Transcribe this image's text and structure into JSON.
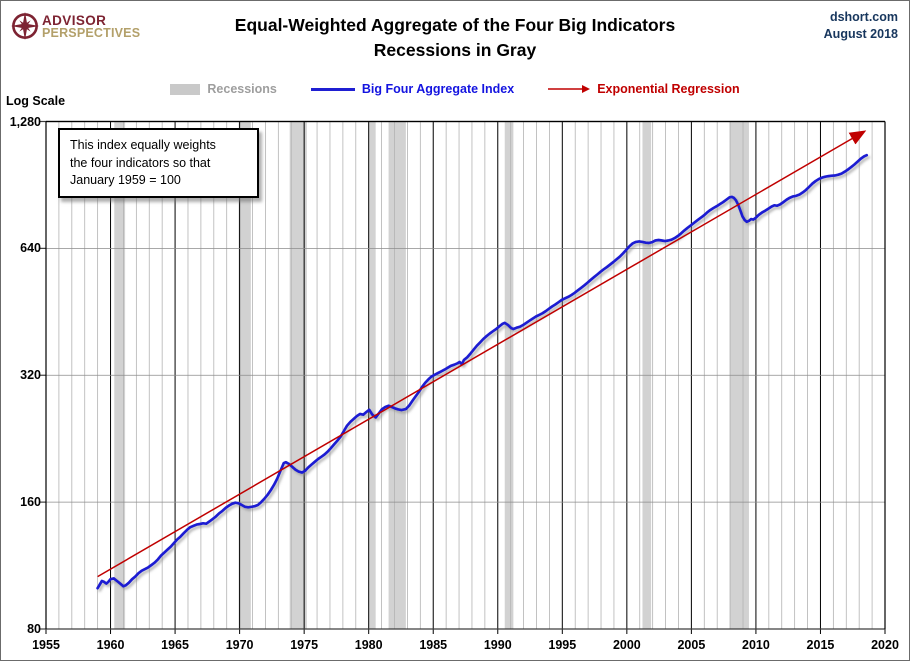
{
  "header": {
    "logo_line1": "ADVISOR",
    "logo_line2": "PERSPECTIVES",
    "title_line1": "Equal-Weighted Aggregate of the Four Big Indicators",
    "title_line2": "Recessions in Gray",
    "source": "dshort.com",
    "date": "August 2018"
  },
  "legend": {
    "recessions_label": "Recessions",
    "index_label": "Big Four Aggregate Index",
    "regression_label": "Exponential Regression"
  },
  "annotation": {
    "line1": "This index equally weights",
    "line2": "the four indicators  so that",
    "line3": "January 1959 = 100"
  },
  "axis": {
    "scale_label": "Log Scale"
  },
  "colors": {
    "index_line": "#1f1fd2",
    "regression_line": "#c00000",
    "recession_band": "#d2d2d2",
    "minor_gridline": "#b3b3b3",
    "major_gridline": "#000000",
    "horizontal_gridline": "#8c8c8c",
    "legend_recessions_text": "#9e9e9e",
    "index_text": "#1414e0",
    "source_text": "#17365d",
    "logo_maroon": "#7d2332",
    "logo_tan": "#b3a06a"
  },
  "chart_data": {
    "type": "line",
    "title": "Equal-Weighted Aggregate of the Four Big Indicators",
    "subtitle": "Recessions in Gray",
    "y_scale": "log",
    "ylim": [
      80,
      1280
    ],
    "xlim": [
      1955,
      2020
    ],
    "y_tick_labels": [
      "1,280",
      "640",
      "320",
      "160",
      "80"
    ],
    "y_tick_values": [
      1280,
      640,
      320,
      160,
      80
    ],
    "x_tick_values": [
      1955,
      1960,
      1965,
      1970,
      1975,
      1980,
      1985,
      1990,
      1995,
      2000,
      2005,
      2010,
      2015,
      2020
    ],
    "recessions": [
      [
        1960.29,
        1961.13
      ],
      [
        1969.92,
        1970.87
      ],
      [
        1973.88,
        1975.21
      ],
      [
        1980.04,
        1980.54
      ],
      [
        1981.54,
        1982.88
      ],
      [
        1990.54,
        1991.21
      ],
      [
        2001.21,
        2001.88
      ],
      [
        2007.96,
        2009.46
      ]
    ],
    "series": [
      {
        "name": "Big Four Aggregate Index",
        "color": "#1f1fd2",
        "points": [
          [
            1959.0,
            100
          ],
          [
            1959.17,
            102
          ],
          [
            1959.33,
            104
          ],
          [
            1959.5,
            103.5
          ],
          [
            1959.67,
            102.5
          ],
          [
            1959.83,
            103.5
          ],
          [
            1960.0,
            105
          ],
          [
            1960.25,
            105.5
          ],
          [
            1960.5,
            104
          ],
          [
            1960.75,
            102.5
          ],
          [
            1961.0,
            101
          ],
          [
            1961.17,
            101.5
          ],
          [
            1961.42,
            103
          ],
          [
            1961.67,
            105
          ],
          [
            1961.92,
            106.5
          ],
          [
            1962.17,
            108.5
          ],
          [
            1962.42,
            110
          ],
          [
            1962.67,
            111
          ],
          [
            1962.92,
            112
          ],
          [
            1963.17,
            113.5
          ],
          [
            1963.42,
            115
          ],
          [
            1963.67,
            117
          ],
          [
            1963.92,
            119.5
          ],
          [
            1964.17,
            121.5
          ],
          [
            1964.42,
            123.5
          ],
          [
            1964.67,
            125.5
          ],
          [
            1964.92,
            128
          ],
          [
            1965.17,
            130.5
          ],
          [
            1965.42,
            132.5
          ],
          [
            1965.67,
            135
          ],
          [
            1965.92,
            137.5
          ],
          [
            1966.17,
            139.5
          ],
          [
            1966.42,
            140.5
          ],
          [
            1966.67,
            141.5
          ],
          [
            1966.92,
            142
          ],
          [
            1967.17,
            142.5
          ],
          [
            1967.42,
            142.2
          ],
          [
            1967.67,
            144
          ],
          [
            1967.92,
            146
          ],
          [
            1968.17,
            148
          ],
          [
            1968.42,
            150.5
          ],
          [
            1968.67,
            152.5
          ],
          [
            1968.92,
            155
          ],
          [
            1969.17,
            157
          ],
          [
            1969.42,
            158.5
          ],
          [
            1969.67,
            159.5
          ],
          [
            1969.92,
            159
          ],
          [
            1970.17,
            157.5
          ],
          [
            1970.42,
            156
          ],
          [
            1970.67,
            155.5
          ],
          [
            1970.92,
            156
          ],
          [
            1971.17,
            156.5
          ],
          [
            1971.42,
            157.5
          ],
          [
            1971.67,
            160
          ],
          [
            1971.92,
            163
          ],
          [
            1972.17,
            166.5
          ],
          [
            1972.42,
            171
          ],
          [
            1972.67,
            176
          ],
          [
            1972.92,
            182
          ],
          [
            1973.17,
            190
          ],
          [
            1973.42,
            198
          ],
          [
            1973.58,
            199
          ],
          [
            1973.83,
            197
          ],
          [
            1974.08,
            194
          ],
          [
            1974.33,
            191
          ],
          [
            1974.58,
            189
          ],
          [
            1974.83,
            188
          ],
          [
            1975.08,
            190
          ],
          [
            1975.33,
            193.5
          ],
          [
            1975.58,
            196.5
          ],
          [
            1975.83,
            199.5
          ],
          [
            1976.08,
            202.5
          ],
          [
            1976.33,
            205
          ],
          [
            1976.58,
            207.5
          ],
          [
            1976.83,
            211
          ],
          [
            1977.08,
            215
          ],
          [
            1977.33,
            219.5
          ],
          [
            1977.58,
            224
          ],
          [
            1977.83,
            229
          ],
          [
            1978.08,
            236
          ],
          [
            1978.33,
            243
          ],
          [
            1978.58,
            248
          ],
          [
            1978.83,
            252
          ],
          [
            1979.08,
            256
          ],
          [
            1979.33,
            259
          ],
          [
            1979.58,
            258
          ],
          [
            1979.83,
            262
          ],
          [
            1980.04,
            265
          ],
          [
            1980.29,
            258
          ],
          [
            1980.54,
            254
          ],
          [
            1980.79,
            260
          ],
          [
            1981.04,
            266
          ],
          [
            1981.29,
            269
          ],
          [
            1981.54,
            271
          ],
          [
            1981.79,
            269
          ],
          [
            1982.04,
            267
          ],
          [
            1982.29,
            265.5
          ],
          [
            1982.54,
            264.5
          ],
          [
            1982.88,
            266
          ],
          [
            1983.13,
            271
          ],
          [
            1983.38,
            278
          ],
          [
            1983.63,
            285
          ],
          [
            1983.88,
            292
          ],
          [
            1984.13,
            300
          ],
          [
            1984.38,
            307
          ],
          [
            1984.63,
            313
          ],
          [
            1984.88,
            318
          ],
          [
            1985.13,
            321
          ],
          [
            1985.38,
            324
          ],
          [
            1985.63,
            327
          ],
          [
            1985.88,
            330
          ],
          [
            1986.13,
            333.5
          ],
          [
            1986.38,
            337
          ],
          [
            1986.63,
            339
          ],
          [
            1986.88,
            341.5
          ],
          [
            1987.04,
            344
          ],
          [
            1987.21,
            340
          ],
          [
            1987.38,
            348
          ],
          [
            1987.63,
            353
          ],
          [
            1987.88,
            360
          ],
          [
            1988.13,
            368
          ],
          [
            1988.38,
            376
          ],
          [
            1988.63,
            383
          ],
          [
            1988.88,
            390
          ],
          [
            1989.13,
            396
          ],
          [
            1989.38,
            402
          ],
          [
            1989.63,
            407
          ],
          [
            1989.88,
            412
          ],
          [
            1990.13,
            418
          ],
          [
            1990.38,
            424
          ],
          [
            1990.54,
            426
          ],
          [
            1990.79,
            421
          ],
          [
            1991.04,
            414
          ],
          [
            1991.21,
            412
          ],
          [
            1991.46,
            415
          ],
          [
            1991.71,
            417
          ],
          [
            1991.96,
            421
          ],
          [
            1992.21,
            426
          ],
          [
            1992.46,
            431
          ],
          [
            1992.71,
            436
          ],
          [
            1992.96,
            441
          ],
          [
            1993.21,
            445
          ],
          [
            1993.46,
            449
          ],
          [
            1993.71,
            454
          ],
          [
            1993.96,
            460
          ],
          [
            1994.21,
            466
          ],
          [
            1994.46,
            471
          ],
          [
            1994.71,
            477
          ],
          [
            1994.96,
            483
          ],
          [
            1995.21,
            487
          ],
          [
            1995.46,
            491
          ],
          [
            1995.71,
            496
          ],
          [
            1995.96,
            502
          ],
          [
            1996.21,
            509
          ],
          [
            1996.46,
            516
          ],
          [
            1996.71,
            523
          ],
          [
            1996.96,
            531
          ],
          [
            1997.21,
            539
          ],
          [
            1997.46,
            547
          ],
          [
            1997.71,
            555
          ],
          [
            1997.96,
            563
          ],
          [
            1998.21,
            571
          ],
          [
            1998.46,
            578
          ],
          [
            1998.71,
            586
          ],
          [
            1998.96,
            594
          ],
          [
            1999.21,
            603
          ],
          [
            1999.46,
            612
          ],
          [
            1999.71,
            623
          ],
          [
            1999.96,
            635
          ],
          [
            2000.21,
            648
          ],
          [
            2000.46,
            658
          ],
          [
            2000.71,
            663
          ],
          [
            2000.96,
            665
          ],
          [
            2001.21,
            663
          ],
          [
            2001.46,
            660
          ],
          [
            2001.71,
            659
          ],
          [
            2001.96,
            662
          ],
          [
            2002.21,
            668
          ],
          [
            2002.46,
            670
          ],
          [
            2002.71,
            668
          ],
          [
            2002.96,
            666
          ],
          [
            2003.21,
            668
          ],
          [
            2003.46,
            671
          ],
          [
            2003.71,
            677
          ],
          [
            2003.96,
            685
          ],
          [
            2004.21,
            695
          ],
          [
            2004.46,
            706
          ],
          [
            2004.71,
            716
          ],
          [
            2004.96,
            726
          ],
          [
            2005.21,
            736
          ],
          [
            2005.46,
            746
          ],
          [
            2005.71,
            756
          ],
          [
            2005.96,
            766
          ],
          [
            2006.21,
            778
          ],
          [
            2006.46,
            789
          ],
          [
            2006.71,
            798
          ],
          [
            2006.96,
            806
          ],
          [
            2007.21,
            815
          ],
          [
            2007.46,
            824
          ],
          [
            2007.71,
            835
          ],
          [
            2007.96,
            846
          ],
          [
            2008.13,
            848
          ],
          [
            2008.29,
            843
          ],
          [
            2008.46,
            832
          ],
          [
            2008.63,
            812
          ],
          [
            2008.79,
            788
          ],
          [
            2008.96,
            762
          ],
          [
            2009.13,
            747
          ],
          [
            2009.29,
            740
          ],
          [
            2009.46,
            744
          ],
          [
            2009.63,
            751
          ],
          [
            2009.79,
            749
          ],
          [
            2009.96,
            755
          ],
          [
            2010.21,
            768
          ],
          [
            2010.46,
            778
          ],
          [
            2010.71,
            786
          ],
          [
            2010.96,
            795
          ],
          [
            2011.21,
            804
          ],
          [
            2011.42,
            810
          ],
          [
            2011.63,
            808
          ],
          [
            2011.88,
            814
          ],
          [
            2012.13,
            824
          ],
          [
            2012.38,
            835
          ],
          [
            2012.63,
            844
          ],
          [
            2012.88,
            850
          ],
          [
            2013.13,
            853
          ],
          [
            2013.38,
            859
          ],
          [
            2013.63,
            869
          ],
          [
            2013.88,
            881
          ],
          [
            2014.13,
            896
          ],
          [
            2014.38,
            912
          ],
          [
            2014.63,
            925
          ],
          [
            2014.88,
            935
          ],
          [
            2015.13,
            942
          ],
          [
            2015.38,
            947
          ],
          [
            2015.63,
            950
          ],
          [
            2015.88,
            952
          ],
          [
            2016.13,
            953
          ],
          [
            2016.38,
            957
          ],
          [
            2016.63,
            963
          ],
          [
            2016.88,
            973
          ],
          [
            2017.13,
            985
          ],
          [
            2017.38,
            998
          ],
          [
            2017.63,
            1012
          ],
          [
            2017.88,
            1028
          ],
          [
            2018.13,
            1045
          ],
          [
            2018.38,
            1058
          ],
          [
            2018.58,
            1065
          ]
        ]
      },
      {
        "name": "Exponential Regression",
        "color": "#c00000",
        "arrow_end": true,
        "points": [
          [
            1959.0,
            106.5
          ],
          [
            2018.25,
            1205
          ]
        ]
      }
    ]
  }
}
